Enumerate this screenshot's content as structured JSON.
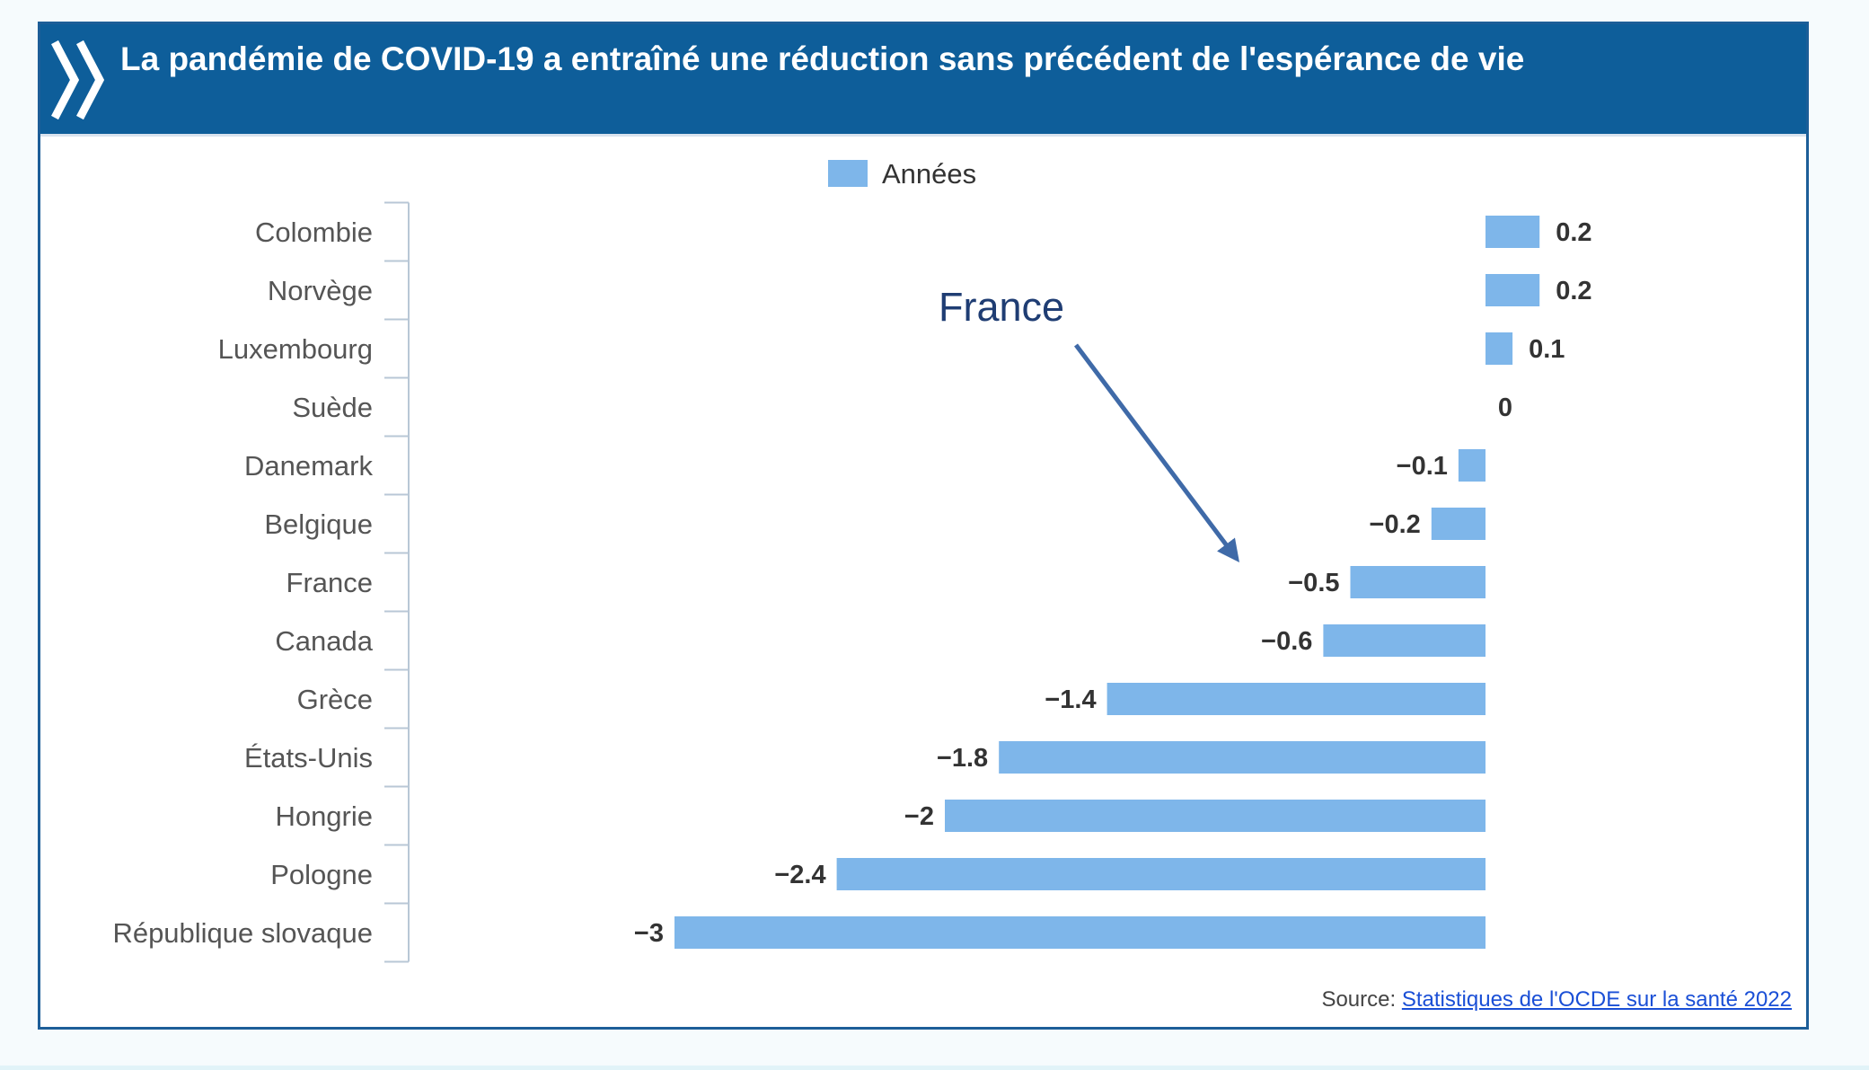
{
  "header": {
    "title": "La pandémie de COVID-19 a entraîné une réduction sans précédent de l'espérance de vie",
    "icon": "double-chevron-icon",
    "background": "#0e5e9a"
  },
  "chart_data": {
    "type": "bar",
    "orientation": "horizontal",
    "title": "La pandémie de COVID-19 a entraîné une réduction sans précédent de l'espérance de vie",
    "categories": [
      "Colombie",
      "Norvège",
      "Luxembourg",
      "Suède",
      "Danemark",
      "Belgique",
      "France",
      "Canada",
      "Grèce",
      "États-Unis",
      "Hongrie",
      "Pologne",
      "République slovaque"
    ],
    "series": [
      {
        "name": "Années",
        "values": [
          0.2,
          0.2,
          0.1,
          0,
          -0.1,
          -0.2,
          -0.5,
          -0.6,
          -1.4,
          -1.8,
          -2,
          -2.4,
          -3
        ],
        "color": "#7eb6ea"
      }
    ],
    "value_labels": [
      "0.2",
      "0.2",
      "0.1",
      "0",
      "−0.1",
      "−0.2",
      "−0.5",
      "−0.6",
      "−1.4",
      "−1.8",
      "−2",
      "−2.4",
      "−3"
    ],
    "xlim": [
      -3.3,
      0.5
    ],
    "legend": "top-center",
    "grid": false,
    "annotation": {
      "text": "France",
      "target": "France"
    }
  },
  "source": {
    "prefix": "Source:",
    "link_text": "Statistiques de l'OCDE sur la santé 2022"
  }
}
